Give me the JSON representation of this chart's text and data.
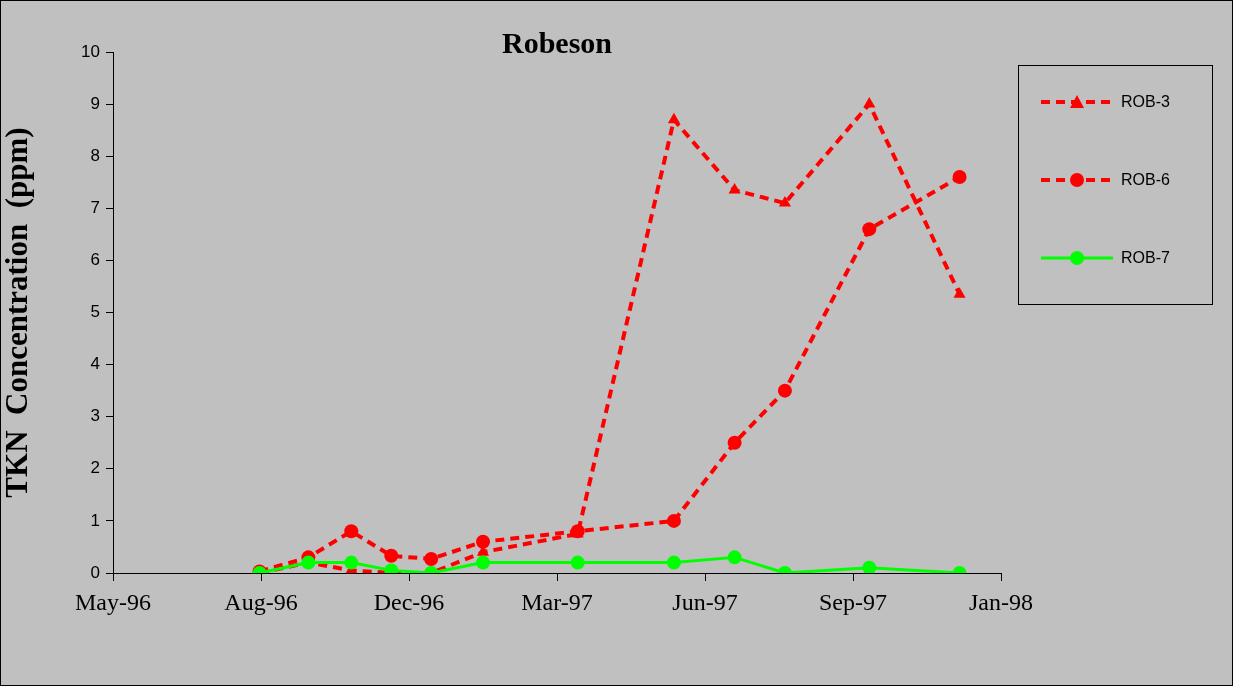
{
  "chart_data": {
    "type": "line",
    "title": "Robeson",
    "ylabel": "TKN  Concentration  (ppm)",
    "x": [
      "1996-08-22",
      "1996-09-24",
      "1996-10-23",
      "1996-11-19",
      "1996-12-16",
      "1997-01-20",
      "1997-03-25",
      "1997-05-29",
      "1997-07-09",
      "1997-08-12",
      "1997-10-08",
      "1997-12-08"
    ],
    "series": [
      {
        "name": "ROB-3",
        "color": "#ff0000",
        "marker": "triangle",
        "line_style": "dashed",
        "values": [
          0,
          0.2,
          0.05,
          0,
          0,
          0.4,
          0.75,
          8.7,
          7.35,
          7.1,
          9.0,
          5.35
        ]
      },
      {
        "name": "ROB-6",
        "color": "#ff0000",
        "marker": "circle",
        "line_style": "dashed",
        "values": [
          0.03,
          0.3,
          0.8,
          0.33,
          0.27,
          0.6,
          0.8,
          1.0,
          2.5,
          3.5,
          6.6,
          7.6
        ]
      },
      {
        "name": "ROB-7",
        "color": "#00ff00",
        "marker": "circle",
        "line_style": "solid",
        "values": [
          0,
          0.2,
          0.2,
          0.05,
          0,
          0.2,
          0.2,
          0.2,
          0.3,
          0,
          0.1,
          0
        ]
      }
    ],
    "xlim": [
      "1996-05-15",
      "1998-01-05"
    ],
    "xticks": [
      {
        "value": "1996-05-15",
        "label": "May-96"
      },
      {
        "value": "1996-08-23",
        "label": "Aug-96"
      },
      {
        "value": "1996-12-01",
        "label": "Dec-96"
      },
      {
        "value": "1997-03-11",
        "label": "Mar-97"
      },
      {
        "value": "1997-06-19",
        "label": "Jun-97"
      },
      {
        "value": "1997-09-27",
        "label": "Sep-97"
      },
      {
        "value": "1998-01-05",
        "label": "Jan-98"
      }
    ],
    "ylim": [
      0,
      10
    ],
    "yticks": [
      0,
      1,
      2,
      3,
      4,
      5,
      6,
      7,
      8,
      9,
      10
    ],
    "grid": false,
    "legend": "top right"
  }
}
